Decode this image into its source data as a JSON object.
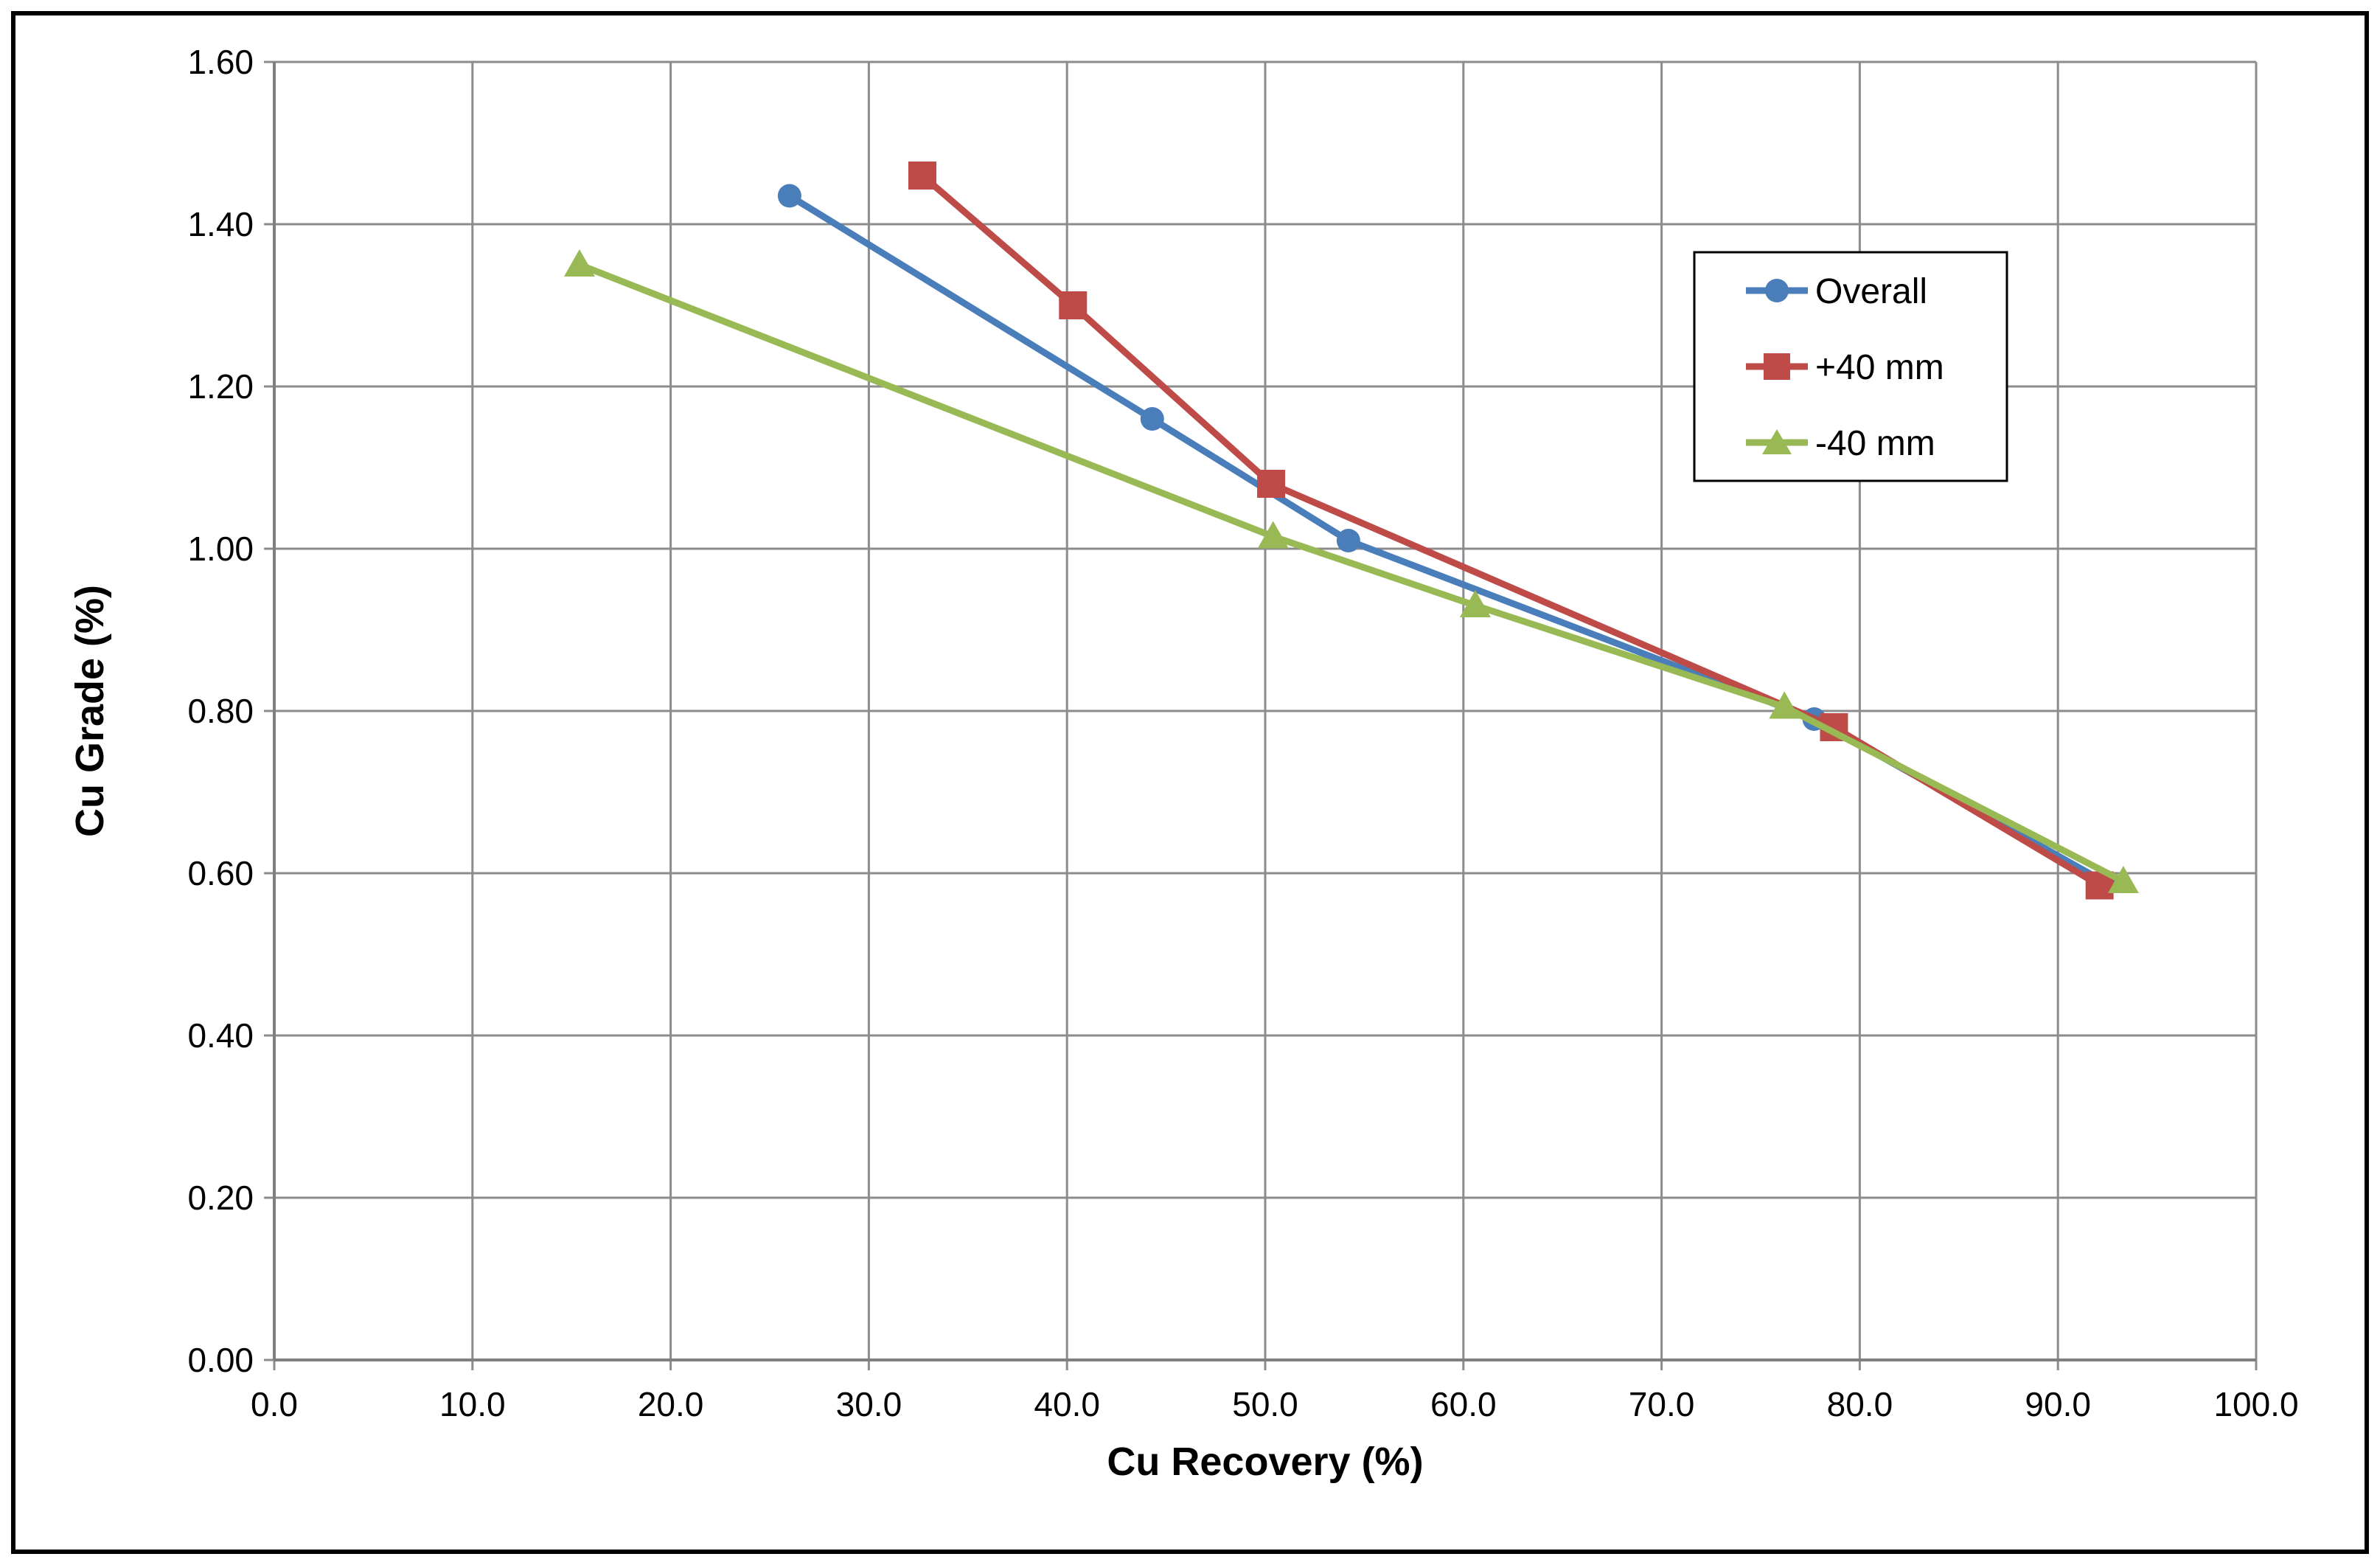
{
  "chart_data": {
    "type": "line",
    "title": "",
    "xlabel": "Cu Recovery (%)",
    "ylabel": "Cu Grade (%)",
    "xlim": [
      0,
      100
    ],
    "ylim": [
      0,
      1.6
    ],
    "x_ticks": [
      "0.0",
      "10.0",
      "20.0",
      "30.0",
      "40.0",
      "50.0",
      "60.0",
      "70.0",
      "80.0",
      "90.0",
      "100.0"
    ],
    "y_ticks": [
      "0.00",
      "0.20",
      "0.40",
      "0.60",
      "0.80",
      "1.00",
      "1.20",
      "1.40",
      "1.60"
    ],
    "grid": true,
    "legend_position": "top-right",
    "series": [
      {
        "name": "Overall",
        "color": "#4a7ebb",
        "marker": "circle",
        "x": [
          26.0,
          44.3,
          54.2,
          77.7,
          92.3
        ],
        "y": [
          1.435,
          1.16,
          1.01,
          0.79,
          0.59
        ]
      },
      {
        "name": "+40 mm",
        "color": "#be4b48",
        "marker": "square",
        "x": [
          32.7,
          40.3,
          50.3,
          78.7,
          92.1
        ],
        "y": [
          1.46,
          1.3,
          1.08,
          0.78,
          0.585
        ]
      },
      {
        "name": "-40 mm",
        "color": "#98b954",
        "marker": "triangle",
        "x": [
          15.4,
          50.4,
          60.6,
          76.2,
          93.3
        ],
        "y": [
          1.35,
          1.015,
          0.93,
          0.805,
          0.59
        ]
      }
    ]
  }
}
